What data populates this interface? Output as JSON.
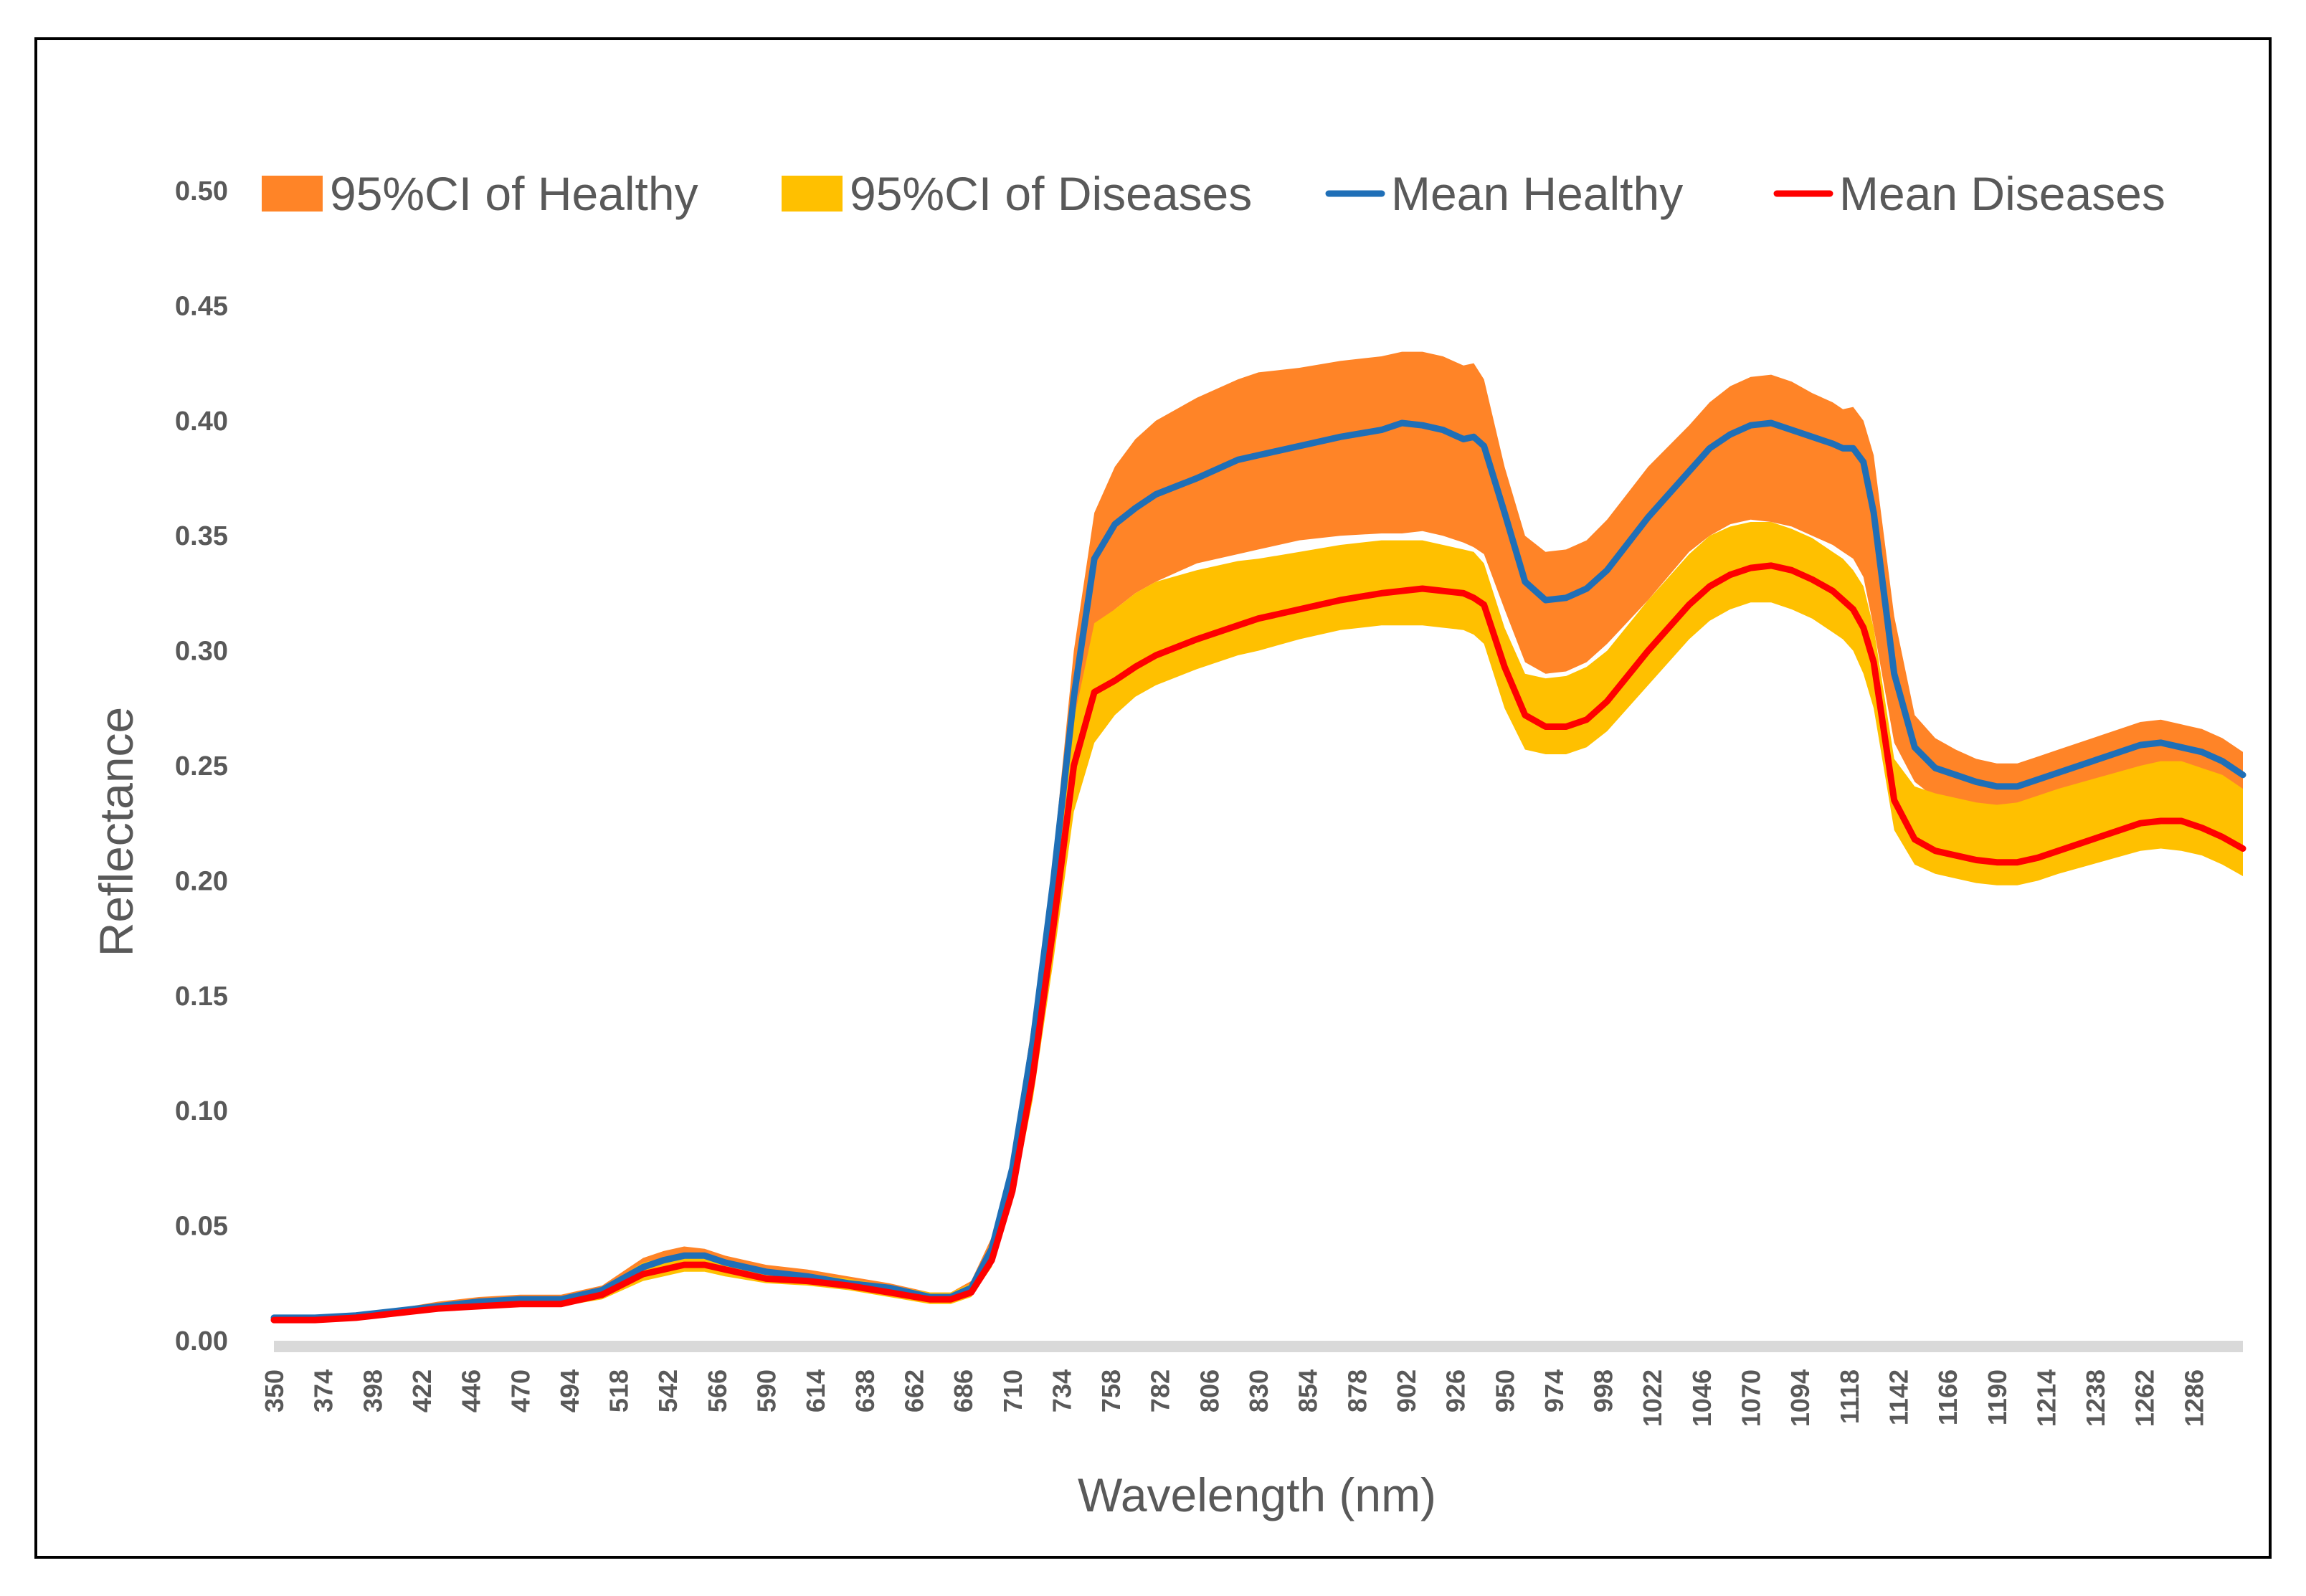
{
  "chart_data": {
    "type": "area",
    "title": "",
    "xlabel": "Wavelength (nm)",
    "ylabel": "Reflectance",
    "xlim": [
      350,
      1310
    ],
    "ylim": [
      0,
      0.5
    ],
    "yticks": [
      "0.00",
      "0.05",
      "0.10",
      "0.15",
      "0.20",
      "0.25",
      "0.30",
      "0.35",
      "0.40",
      "0.45",
      "0.50"
    ],
    "xticks": [
      "350",
      "374",
      "398",
      "422",
      "446",
      "470",
      "494",
      "518",
      "542",
      "566",
      "590",
      "614",
      "638",
      "662",
      "686",
      "710",
      "734",
      "758",
      "782",
      "806",
      "830",
      "854",
      "878",
      "902",
      "926",
      "950",
      "974",
      "998",
      "1022",
      "1046",
      "1070",
      "1094",
      "1118",
      "1142",
      "1166",
      "1190",
      "1214",
      "1238",
      "1262",
      "1286"
    ],
    "legend": {
      "position": "top",
      "items": [
        {
          "label": "95%CI of Healthy",
          "kind": "area",
          "color": "#FF8427"
        },
        {
          "label": "95%CI of Diseases",
          "kind": "area",
          "color": "#FFC000"
        },
        {
          "label": "Mean Healthy",
          "kind": "line",
          "color": "#1F6FB7"
        },
        {
          "label": "Mean Diseases",
          "kind": "line",
          "color": "#FF0000"
        }
      ]
    },
    "x": [
      350,
      370,
      390,
      410,
      430,
      450,
      470,
      490,
      510,
      530,
      540,
      550,
      560,
      570,
      590,
      610,
      630,
      650,
      670,
      680,
      690,
      700,
      710,
      720,
      730,
      740,
      750,
      760,
      770,
      780,
      800,
      820,
      830,
      850,
      870,
      890,
      900,
      910,
      920,
      930,
      935,
      940,
      950,
      960,
      970,
      980,
      990,
      1000,
      1020,
      1040,
      1050,
      1060,
      1070,
      1080,
      1090,
      1100,
      1110,
      1115,
      1120,
      1125,
      1130,
      1140,
      1150,
      1160,
      1170,
      1180,
      1190,
      1200,
      1210,
      1220,
      1240,
      1260,
      1270,
      1280,
      1290,
      1300,
      1310
    ],
    "series": [
      {
        "name": "Mean Healthy",
        "color": "#1F6FB7",
        "values": [
          0.01,
          0.01,
          0.011,
          0.013,
          0.015,
          0.017,
          0.018,
          0.018,
          0.022,
          0.032,
          0.035,
          0.037,
          0.037,
          0.034,
          0.03,
          0.028,
          0.025,
          0.023,
          0.019,
          0.019,
          0.023,
          0.04,
          0.075,
          0.13,
          0.2,
          0.28,
          0.34,
          0.355,
          0.362,
          0.368,
          0.375,
          0.383,
          0.385,
          0.389,
          0.393,
          0.396,
          0.399,
          0.398,
          0.396,
          0.392,
          0.393,
          0.389,
          0.36,
          0.33,
          0.322,
          0.323,
          0.327,
          0.335,
          0.358,
          0.378,
          0.388,
          0.394,
          0.398,
          0.399,
          0.396,
          0.393,
          0.39,
          0.388,
          0.388,
          0.382,
          0.36,
          0.29,
          0.258,
          0.249,
          0.246,
          0.243,
          0.241,
          0.241,
          0.244,
          0.247,
          0.253,
          0.259,
          0.26,
          0.258,
          0.256,
          0.252,
          0.246
        ]
      },
      {
        "name": "Mean Diseases",
        "color": "#FF0000",
        "values": [
          0.009,
          0.009,
          0.01,
          0.012,
          0.014,
          0.015,
          0.016,
          0.016,
          0.02,
          0.029,
          0.031,
          0.033,
          0.033,
          0.031,
          0.027,
          0.026,
          0.024,
          0.021,
          0.018,
          0.018,
          0.021,
          0.035,
          0.065,
          0.115,
          0.18,
          0.25,
          0.282,
          0.287,
          0.293,
          0.298,
          0.305,
          0.311,
          0.314,
          0.318,
          0.322,
          0.325,
          0.326,
          0.327,
          0.326,
          0.325,
          0.323,
          0.32,
          0.293,
          0.272,
          0.267,
          0.267,
          0.27,
          0.278,
          0.3,
          0.32,
          0.328,
          0.333,
          0.336,
          0.337,
          0.335,
          0.331,
          0.326,
          0.322,
          0.318,
          0.31,
          0.295,
          0.235,
          0.218,
          0.213,
          0.211,
          0.209,
          0.208,
          0.208,
          0.21,
          0.213,
          0.219,
          0.225,
          0.226,
          0.226,
          0.223,
          0.219,
          0.214
        ]
      },
      {
        "name": "95%CI of Healthy",
        "color": "#FF8427",
        "lower": [
          0.01,
          0.01,
          0.011,
          0.013,
          0.015,
          0.017,
          0.018,
          0.018,
          0.022,
          0.032,
          0.034,
          0.036,
          0.036,
          0.033,
          0.03,
          0.028,
          0.025,
          0.023,
          0.019,
          0.019,
          0.023,
          0.04,
          0.07,
          0.125,
          0.19,
          0.27,
          0.31,
          0.318,
          0.325,
          0.33,
          0.338,
          0.342,
          0.344,
          0.348,
          0.35,
          0.351,
          0.351,
          0.352,
          0.35,
          0.347,
          0.345,
          0.342,
          0.318,
          0.295,
          0.29,
          0.291,
          0.295,
          0.303,
          0.322,
          0.343,
          0.35,
          0.355,
          0.357,
          0.356,
          0.354,
          0.35,
          0.346,
          0.343,
          0.34,
          0.332,
          0.31,
          0.26,
          0.243,
          0.236,
          0.233,
          0.231,
          0.229,
          0.229,
          0.231,
          0.234,
          0.24,
          0.245,
          0.246,
          0.245,
          0.243,
          0.239,
          0.234
        ],
        "upper": [
          0.01,
          0.011,
          0.012,
          0.014,
          0.017,
          0.019,
          0.02,
          0.02,
          0.024,
          0.036,
          0.039,
          0.041,
          0.04,
          0.037,
          0.033,
          0.031,
          0.028,
          0.025,
          0.021,
          0.021,
          0.026,
          0.045,
          0.08,
          0.14,
          0.21,
          0.3,
          0.36,
          0.38,
          0.392,
          0.4,
          0.41,
          0.418,
          0.421,
          0.423,
          0.426,
          0.428,
          0.43,
          0.43,
          0.428,
          0.424,
          0.425,
          0.418,
          0.38,
          0.35,
          0.343,
          0.344,
          0.348,
          0.357,
          0.38,
          0.398,
          0.408,
          0.415,
          0.419,
          0.42,
          0.417,
          0.412,
          0.408,
          0.405,
          0.406,
          0.4,
          0.385,
          0.315,
          0.272,
          0.262,
          0.257,
          0.253,
          0.251,
          0.251,
          0.254,
          0.257,
          0.263,
          0.269,
          0.27,
          0.268,
          0.266,
          0.262,
          0.256
        ]
      },
      {
        "name": "95%CI of Diseases",
        "color": "#FFC000",
        "lower": [
          0.008,
          0.008,
          0.009,
          0.011,
          0.013,
          0.014,
          0.015,
          0.015,
          0.018,
          0.026,
          0.028,
          0.03,
          0.03,
          0.028,
          0.025,
          0.024,
          0.022,
          0.019,
          0.016,
          0.016,
          0.019,
          0.032,
          0.06,
          0.105,
          0.165,
          0.23,
          0.26,
          0.272,
          0.28,
          0.285,
          0.292,
          0.298,
          0.3,
          0.305,
          0.309,
          0.311,
          0.311,
          0.311,
          0.31,
          0.309,
          0.307,
          0.303,
          0.275,
          0.257,
          0.255,
          0.255,
          0.258,
          0.265,
          0.285,
          0.305,
          0.313,
          0.318,
          0.321,
          0.321,
          0.318,
          0.314,
          0.308,
          0.305,
          0.3,
          0.29,
          0.275,
          0.222,
          0.207,
          0.203,
          0.201,
          0.199,
          0.198,
          0.198,
          0.2,
          0.203,
          0.208,
          0.213,
          0.214,
          0.213,
          0.211,
          0.207,
          0.202
        ],
        "upper": [
          0.01,
          0.01,
          0.011,
          0.013,
          0.016,
          0.017,
          0.018,
          0.018,
          0.023,
          0.034,
          0.036,
          0.038,
          0.038,
          0.035,
          0.031,
          0.029,
          0.027,
          0.024,
          0.021,
          0.021,
          0.025,
          0.04,
          0.072,
          0.125,
          0.195,
          0.27,
          0.312,
          0.318,
          0.325,
          0.33,
          0.335,
          0.339,
          0.34,
          0.343,
          0.346,
          0.348,
          0.348,
          0.348,
          0.346,
          0.344,
          0.343,
          0.338,
          0.31,
          0.29,
          0.288,
          0.289,
          0.293,
          0.3,
          0.322,
          0.342,
          0.35,
          0.354,
          0.356,
          0.356,
          0.353,
          0.349,
          0.343,
          0.34,
          0.335,
          0.328,
          0.31,
          0.253,
          0.241,
          0.238,
          0.236,
          0.234,
          0.233,
          0.234,
          0.237,
          0.24,
          0.245,
          0.25,
          0.252,
          0.252,
          0.249,
          0.246,
          0.24
        ]
      }
    ]
  }
}
